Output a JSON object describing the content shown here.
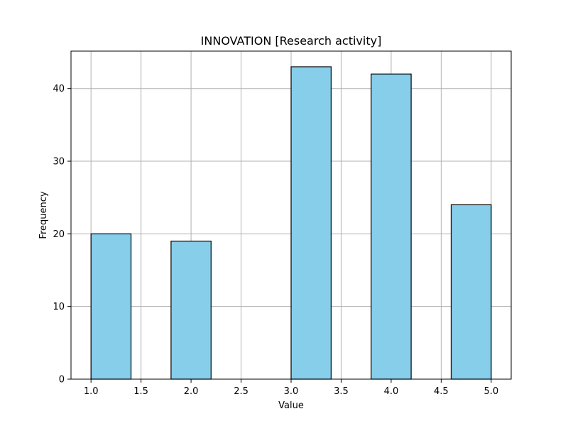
{
  "chart_data": {
    "type": "bar",
    "subtype": "histogram",
    "title": "INNOVATION [Research activity]",
    "xlabel": "Value",
    "ylabel": "Frequency",
    "xlim": [
      0.8,
      5.2
    ],
    "ylim": [
      0,
      45.15
    ],
    "xticks": [
      "1.0",
      "1.5",
      "2.0",
      "2.5",
      "3.0",
      "3.5",
      "4.0",
      "4.5",
      "5.0"
    ],
    "yticks": [
      "0",
      "10",
      "20",
      "30",
      "40"
    ],
    "bins": [
      {
        "x0": 1.0,
        "x1": 1.4,
        "value": 20
      },
      {
        "x0": 1.4,
        "x1": 1.8,
        "value": 0
      },
      {
        "x0": 1.8,
        "x1": 2.2,
        "value": 19
      },
      {
        "x0": 2.2,
        "x1": 2.6,
        "value": 0
      },
      {
        "x0": 2.6,
        "x1": 3.0,
        "value": 0
      },
      {
        "x0": 3.0,
        "x1": 3.4,
        "value": 43
      },
      {
        "x0": 3.4,
        "x1": 3.8,
        "value": 0
      },
      {
        "x0": 3.8,
        "x1": 4.2,
        "value": 42
      },
      {
        "x0": 4.2,
        "x1": 4.6,
        "value": 0
      },
      {
        "x0": 4.6,
        "x1": 5.0,
        "value": 24
      }
    ],
    "grid": true,
    "colors": {
      "bar_fill": "#87ceeb",
      "bar_edge": "#000000",
      "grid": "#b0b0b0"
    }
  }
}
